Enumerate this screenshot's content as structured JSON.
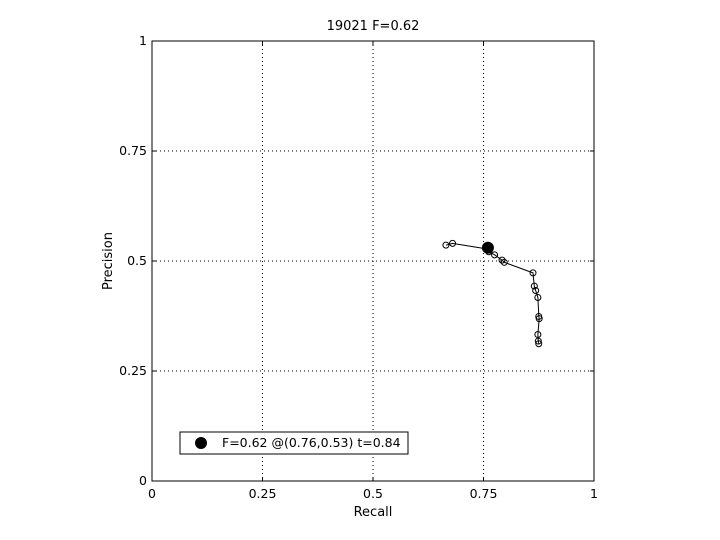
{
  "chart_data": {
    "type": "line",
    "title": "19021 F=0.62",
    "xlabel": "Recall",
    "ylabel": "Precision",
    "xlim": [
      0,
      1
    ],
    "ylim": [
      0,
      1
    ],
    "x_ticks": [
      0,
      0.25,
      0.5,
      0.75,
      1
    ],
    "y_ticks": [
      0,
      0.25,
      0.5,
      0.75,
      1
    ],
    "x_tick_labels": [
      "0",
      "0.25",
      "0.5",
      "0.75",
      "1"
    ],
    "y_tick_labels": [
      "0",
      "0.25",
      "0.5",
      "0.75",
      "1"
    ],
    "grid": true,
    "legend_position": "bottom-left",
    "series": [
      {
        "marker": "open-circle",
        "x": [
          0.665,
          0.68,
          0.755,
          0.762,
          0.775,
          0.792,
          0.797,
          0.862,
          0.865,
          0.868,
          0.873,
          0.875,
          0.876,
          0.873,
          0.874,
          0.875
        ],
        "y": [
          0.536,
          0.54,
          0.528,
          0.521,
          0.514,
          0.502,
          0.497,
          0.473,
          0.443,
          0.433,
          0.417,
          0.374,
          0.369,
          0.333,
          0.318,
          0.312
        ]
      }
    ],
    "best_point": {
      "x": 0.76,
      "y": 0.53,
      "marker": "filled-circle"
    },
    "legend": {
      "label": "F=0.62 @(0.76,0.53) t=0.84"
    }
  }
}
